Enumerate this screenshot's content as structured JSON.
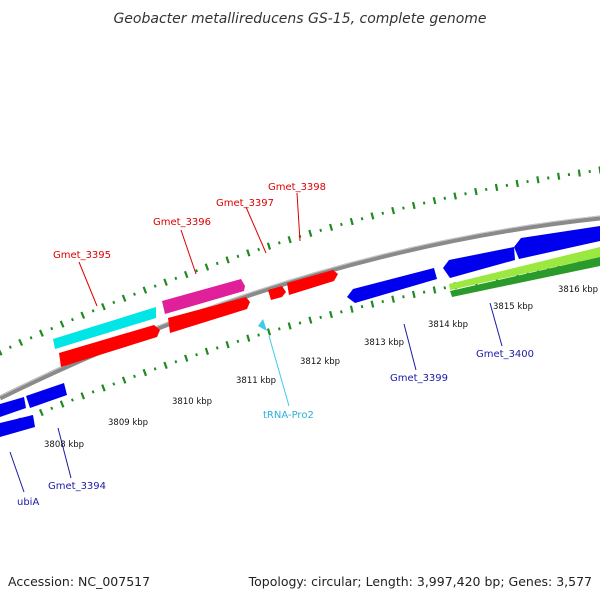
{
  "title": "Geobacter metallireducens GS-15, complete genome",
  "footer": {
    "accession": "Accession: NC_007517",
    "summary": "Topology: circular; Length: 3,997,420 bp; Genes: 3,577"
  },
  "ruler_labels": [
    "3808 kbp",
    "3809 kbp",
    "3810 kbp",
    "3811 kbp",
    "3812 kbp",
    "3813 kbp",
    "3814 kbp",
    "3815 kbp",
    "3816 kbp"
  ],
  "gene_labels": [
    {
      "text": "Gmet_3395",
      "strand": "forward",
      "color": "#dd0000"
    },
    {
      "text": "Gmet_3396",
      "strand": "forward",
      "color": "#dd0000"
    },
    {
      "text": "Gmet_3397",
      "strand": "forward",
      "color": "#dd0000"
    },
    {
      "text": "Gmet_3398",
      "strand": "forward",
      "color": "#dd0000"
    },
    {
      "text": "Gmet_3399",
      "strand": "reverse",
      "color": "#1a1aa6"
    },
    {
      "text": "Gmet_3400",
      "strand": "reverse",
      "color": "#1a1aa6"
    },
    {
      "text": "tRNA-Pro2",
      "strand": "forward",
      "color": "#2bb0d8"
    },
    {
      "text": "Gmet_3394",
      "strand": "reverse",
      "color": "#1a1aa6"
    },
    {
      "text": "ubiA",
      "strand": "reverse",
      "color": "#1a1aa6"
    }
  ],
  "feature_colors": {
    "forward_cds": "#ff0000",
    "reverse_cds": "#0000ee",
    "rrna": "#00e5e5",
    "other": "#e0209a",
    "trna": "#40c8ee",
    "backbone": "#8a8a8a",
    "ruler": "#1f8a1f",
    "light_green": "#9be840",
    "dark_green": "#2a9a2a"
  }
}
